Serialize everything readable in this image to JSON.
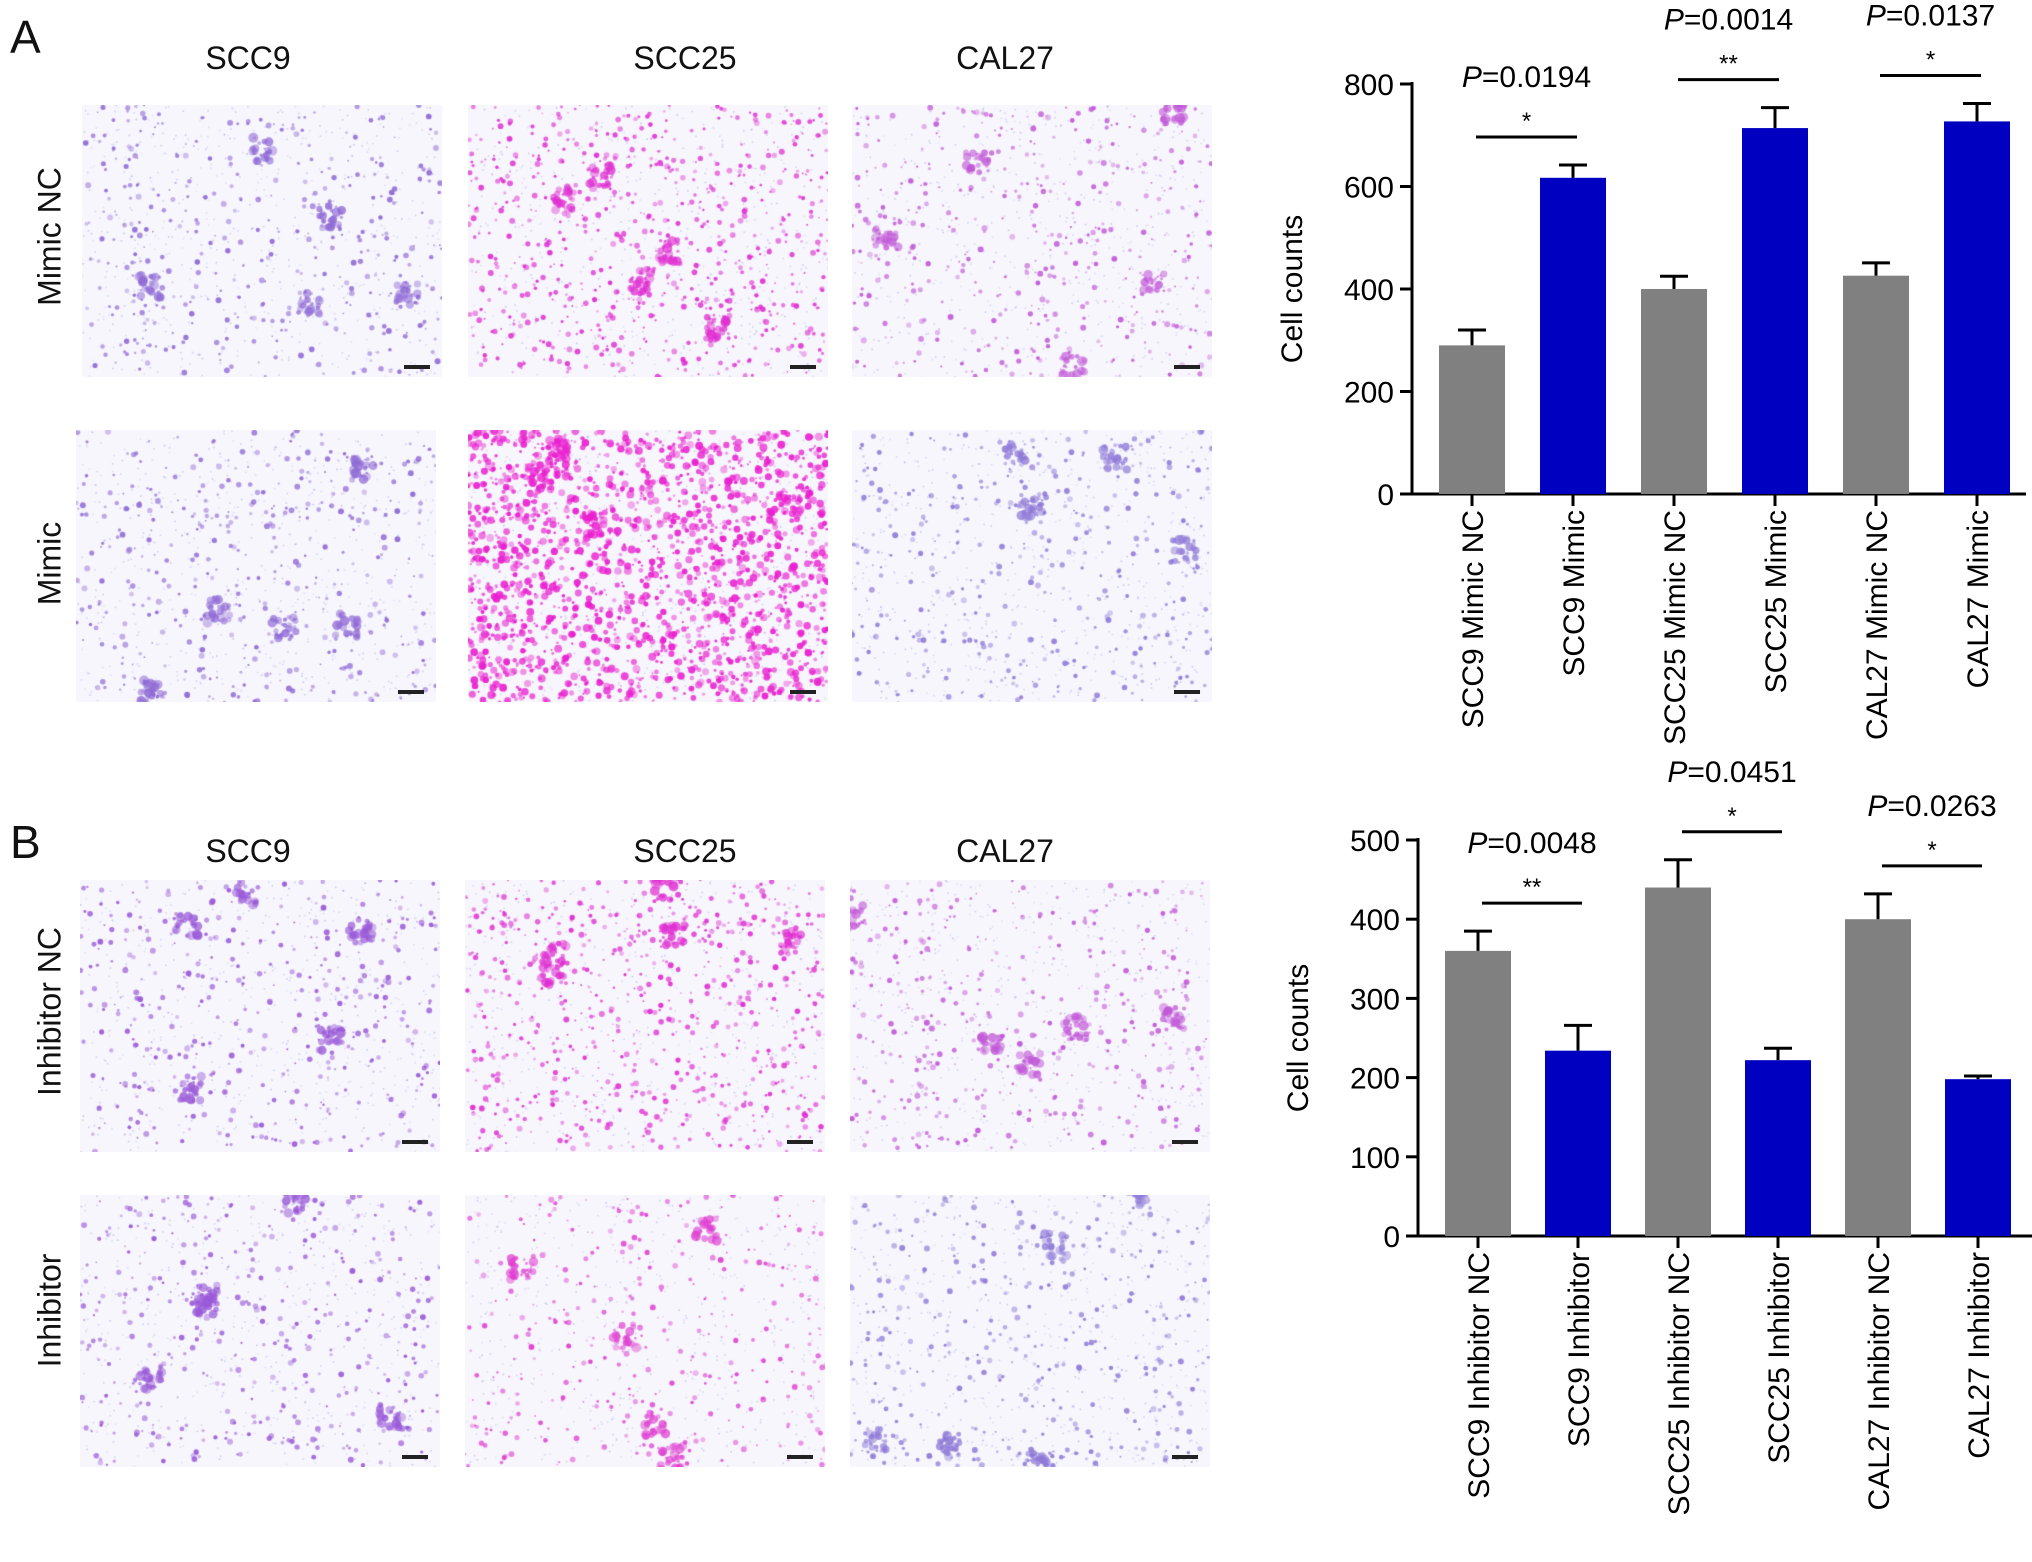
{
  "panels": [
    {
      "letter": "A",
      "columns": [
        "SCC9",
        "SCC25",
        "CAL27"
      ],
      "rows": [
        "Mimic NC",
        "Mimic"
      ]
    },
    {
      "letter": "B",
      "columns": [
        "SCC9",
        "SCC25",
        "CAL27"
      ],
      "rows": [
        "Inhibitor NC",
        "Inhibitor"
      ]
    }
  ],
  "micrographs": [
    {
      "row": 0,
      "col": 0,
      "density": "sparse",
      "stain": "#8f6ad6"
    },
    {
      "row": 0,
      "col": 1,
      "density": "medium",
      "stain": "#e02fd2"
    },
    {
      "row": 0,
      "col": 2,
      "density": "sparse",
      "stain": "#c259d8"
    },
    {
      "row": 1,
      "col": 0,
      "density": "sparse",
      "stain": "#8f6ad6"
    },
    {
      "row": 1,
      "col": 1,
      "density": "dense",
      "stain": "#ea1fd0"
    },
    {
      "row": 1,
      "col": 2,
      "density": "sparse",
      "stain": "#8f7ad8"
    },
    {
      "row": 2,
      "col": 0,
      "density": "sparse",
      "stain": "#9a5ad8"
    },
    {
      "row": 2,
      "col": 1,
      "density": "medium",
      "stain": "#e02fd2"
    },
    {
      "row": 2,
      "col": 2,
      "density": "sparse",
      "stain": "#c259d8"
    },
    {
      "row": 3,
      "col": 0,
      "density": "sparse",
      "stain": "#9a5ad8"
    },
    {
      "row": 3,
      "col": 1,
      "density": "light",
      "stain": "#e040d2"
    },
    {
      "row": 3,
      "col": 2,
      "density": "sparse",
      "stain": "#8f7ad8"
    }
  ],
  "colors": {
    "nc": "#808080",
    "treated": "#0000c0"
  },
  "chart_data": [
    {
      "type": "bar",
      "ylabel": "Cell counts",
      "ylim": [
        0,
        800
      ],
      "yticks": [
        0,
        200,
        400,
        600,
        800
      ],
      "categories": [
        "SCC9 Mimic NC",
        "SCC9 Mimic",
        "SCC25 Mimic NC",
        "SCC25 Mimic",
        "CAL27 Mimic NC",
        "CAL27 Mimic"
      ],
      "values": [
        290,
        617,
        400,
        714,
        426,
        727
      ],
      "errors": [
        30,
        25,
        25,
        40,
        25,
        35
      ],
      "bar_colors": [
        "nc",
        "treated",
        "nc",
        "treated",
        "nc",
        "treated"
      ],
      "comparisons": [
        {
          "pair": [
            0,
            1
          ],
          "stars": "*",
          "p_label": "P",
          "p_value": "=0.0194"
        },
        {
          "pair": [
            2,
            3
          ],
          "stars": "**",
          "p_label": "P",
          "p_value": "=0.0014"
        },
        {
          "pair": [
            4,
            5
          ],
          "stars": "*",
          "p_label": "P",
          "p_value": "=0.0137"
        }
      ]
    },
    {
      "type": "bar",
      "ylabel": "Cell counts",
      "ylim": [
        0,
        500
      ],
      "yticks": [
        0,
        100,
        200,
        300,
        400,
        500
      ],
      "categories": [
        "SCC9 Inhibitor NC",
        "SCC9 Inhibitor",
        "SCC25 Inhibitor NC",
        "SCC25 Inhibitor",
        "CAL27 Inhibitor NC",
        "CAL27 Inhibitor"
      ],
      "values": [
        360,
        234,
        440,
        222,
        400,
        198
      ],
      "errors": [
        25,
        32,
        35,
        15,
        32,
        4
      ],
      "bar_colors": [
        "nc",
        "treated",
        "nc",
        "treated",
        "nc",
        "treated"
      ],
      "comparisons": [
        {
          "pair": [
            0,
            1
          ],
          "stars": "**",
          "p_label": "P",
          "p_value": "=0.0048"
        },
        {
          "pair": [
            2,
            3
          ],
          "stars": "*",
          "p_label": "P",
          "p_value": "=0.0451"
        },
        {
          "pair": [
            4,
            5
          ],
          "stars": "*",
          "p_label": "P",
          "p_value": "=0.0263"
        }
      ]
    }
  ]
}
